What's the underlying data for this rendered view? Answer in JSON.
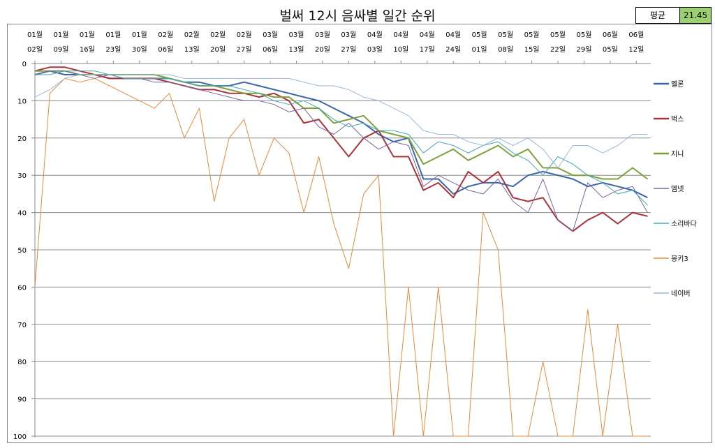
{
  "title": "벌써 12시 음싸별 일간 순위",
  "average": {
    "label": "평균",
    "value": "21.45"
  },
  "chart_data": {
    "type": "line",
    "title": "벌써 12시 음싸별 일간 순위",
    "xlabel": "",
    "ylabel": "",
    "ylim": [
      0,
      100
    ],
    "y_inverted": true,
    "y_ticks": [
      0,
      10,
      20,
      30,
      40,
      50,
      60,
      70,
      80,
      90,
      100
    ],
    "grid": true,
    "legend": "right",
    "x_axis_position": "top",
    "x_days": [
      0,
      4,
      8,
      12,
      16,
      20,
      24,
      28,
      32,
      36,
      40,
      44,
      48,
      52,
      56,
      60,
      64,
      68,
      72,
      76,
      80,
      84,
      88,
      92,
      96,
      100,
      104,
      108,
      112,
      116,
      120,
      124,
      128,
      132,
      136,
      140,
      144,
      148,
      152,
      156,
      160,
      164
    ],
    "x_tick_days": [
      0,
      7,
      14,
      21,
      28,
      35,
      42,
      49,
      56,
      63,
      70,
      77,
      84,
      91,
      98,
      105,
      112,
      119,
      126,
      133,
      140,
      147,
      154,
      161
    ],
    "x_tick_labels": [
      [
        "01월",
        "02일"
      ],
      [
        "01월",
        "09일"
      ],
      [
        "01월",
        "16일"
      ],
      [
        "01월",
        "23일"
      ],
      [
        "01월",
        "30일"
      ],
      [
        "02월",
        "06일"
      ],
      [
        "02월",
        "13일"
      ],
      [
        "02월",
        "20일"
      ],
      [
        "02월",
        "27일"
      ],
      [
        "03월",
        "06일"
      ],
      [
        "03월",
        "13일"
      ],
      [
        "03월",
        "20일"
      ],
      [
        "03월",
        "27일"
      ],
      [
        "04월",
        "03일"
      ],
      [
        "04월",
        "10일"
      ],
      [
        "04월",
        "17일"
      ],
      [
        "04월",
        "24일"
      ],
      [
        "05월",
        "01일"
      ],
      [
        "05월",
        "08일"
      ],
      [
        "05월",
        "15일"
      ],
      [
        "05월",
        "22일"
      ],
      [
        "05월",
        "29일"
      ],
      [
        "06월",
        "05일"
      ],
      [
        "06월",
        "12일"
      ]
    ],
    "series": [
      {
        "name": "멜론",
        "color": "#3a66a8",
        "width": 2,
        "values": [
          3,
          2,
          3,
          3,
          3,
          4,
          4,
          4,
          4,
          4,
          5,
          5,
          6,
          6,
          5,
          6,
          7,
          8,
          9,
          10,
          12,
          14,
          16,
          19,
          21,
          20,
          31,
          31,
          35,
          33,
          32,
          32,
          33,
          30,
          29,
          30,
          31,
          33,
          32,
          33,
          34,
          36
        ]
      },
      {
        "name": "벅스",
        "color": "#a8343a",
        "width": 2,
        "values": [
          2,
          1,
          1,
          2,
          3,
          4,
          4,
          4,
          4,
          5,
          6,
          7,
          7,
          8,
          8,
          9,
          8,
          10,
          16,
          15,
          20,
          25,
          20,
          18,
          25,
          25,
          34,
          32,
          36,
          29,
          32,
          29,
          36,
          37,
          36,
          42,
          45,
          42,
          40,
          43,
          40,
          41
        ]
      },
      {
        "name": "지니",
        "color": "#7ea03c",
        "width": 2,
        "values": [
          2,
          2,
          2,
          3,
          3,
          3,
          3,
          3,
          3,
          4,
          5,
          6,
          6,
          7,
          8,
          8,
          9,
          9,
          12,
          12,
          16,
          15,
          14,
          18,
          19,
          20,
          27,
          25,
          23,
          26,
          24,
          22,
          25,
          23,
          28,
          28,
          30,
          30,
          31,
          31,
          28,
          31
        ]
      },
      {
        "name": "엠넷",
        "color": "#7b63a3",
        "width": 1,
        "values": [
          3,
          2,
          2,
          3,
          4,
          3,
          4,
          4,
          5,
          5,
          6,
          7,
          8,
          9,
          10,
          10,
          11,
          13,
          12,
          17,
          19,
          16,
          20,
          23,
          21,
          22,
          33,
          30,
          32,
          34,
          35,
          31,
          37,
          40,
          31,
          42,
          45,
          32,
          36,
          34,
          33,
          40
        ]
      },
      {
        "name": "소리바다",
        "color": "#45a6bb",
        "width": 1,
        "values": [
          3,
          3,
          2,
          2,
          2,
          3,
          4,
          4,
          4,
          4,
          5,
          6,
          6,
          6,
          7,
          8,
          10,
          11,
          10,
          12,
          15,
          17,
          16,
          18,
          18,
          19,
          24,
          21,
          22,
          24,
          22,
          21,
          24,
          26,
          30,
          25,
          27,
          30,
          32,
          35,
          34,
          38
        ]
      },
      {
        "name": "몽키3",
        "color": "#e8893a",
        "width": 1,
        "values": [
          60,
          8,
          4,
          5,
          4,
          6,
          8,
          10,
          12,
          8,
          20,
          12,
          37,
          20,
          15,
          30,
          20,
          24,
          40,
          25,
          43,
          55,
          35,
          30,
          100,
          60,
          100,
          60,
          100,
          100,
          40,
          50,
          100,
          100,
          80,
          100,
          100,
          66,
          100,
          70,
          100,
          100
        ]
      },
      {
        "name": "네이버",
        "color": "#9fb6dc",
        "width": 1,
        "values": [
          9,
          7,
          4,
          3,
          3,
          3,
          3,
          3,
          3,
          3,
          4,
          4,
          4,
          4,
          4,
          4,
          4,
          4,
          5,
          6,
          6,
          7,
          9,
          10,
          12,
          14,
          18,
          19,
          19,
          21,
          22,
          20,
          22,
          20,
          23,
          28,
          22,
          22,
          24,
          22,
          19,
          19
        ]
      }
    ]
  }
}
